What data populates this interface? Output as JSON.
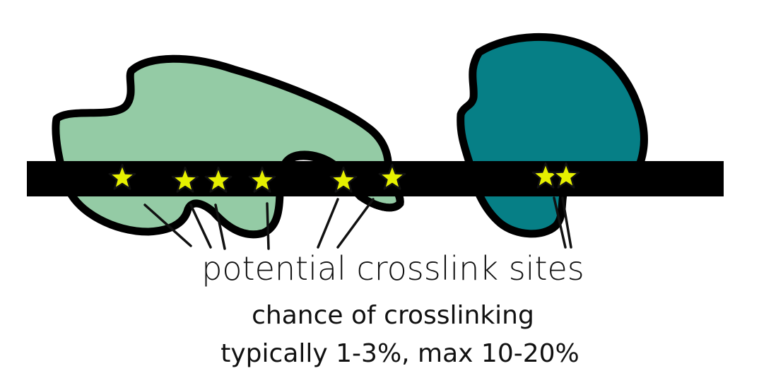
{
  "diagram": {
    "colors": {
      "background": "#ffffff",
      "outline": "#000000",
      "strand": "#000000",
      "protein_light": "#94cba5",
      "protein_dark": "#067f86",
      "star_fill": "#e6f000",
      "star_stroke": "#111111"
    },
    "labels": {
      "title": "potential crosslink sites",
      "line2": "chance of crosslinking",
      "line3": "typically 1-3%, max 10-20%"
    },
    "elements": {
      "strand": "nucleic-acid-strand",
      "left_protein": "light-green-protein-blob",
      "right_protein": "teal-protein-blob",
      "markers": "star-icon"
    },
    "crosslink_site_count": 8
  }
}
